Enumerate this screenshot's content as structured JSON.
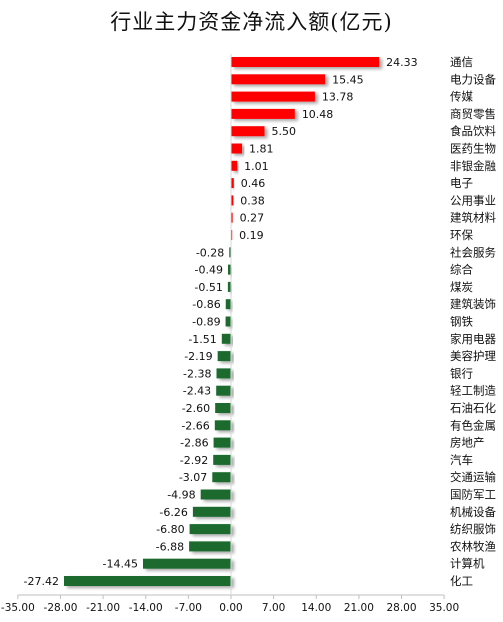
{
  "chart_data": {
    "type": "bar",
    "orientation": "horizontal",
    "title": "行业主力资金净流入额(亿元)",
    "xlabel": "",
    "ylabel": "",
    "xlim": [
      -35,
      35
    ],
    "xticks": [
      "-35.00",
      "-28.00",
      "-21.00",
      "-14.00",
      "-7.00",
      "0.00",
      "7.00",
      "14.00",
      "21.00",
      "28.00",
      "35.00"
    ],
    "categories": [
      "通信",
      "电力设备",
      "传媒",
      "商贸零售",
      "食品饮料",
      "医药生物",
      "非银金融",
      "电子",
      "公用事业",
      "建筑材料",
      "环保",
      "社会服务",
      "综合",
      "煤炭",
      "建筑装饰",
      "钢铁",
      "家用电器",
      "美容护理",
      "银行",
      "轻工制造",
      "石油石化",
      "有色金属",
      "房地产",
      "汽车",
      "交通运输",
      "国防军工",
      "机械设备",
      "纺织服饰",
      "农林牧渔",
      "计算机",
      "化工"
    ],
    "values": [
      24.33,
      15.45,
      13.78,
      10.48,
      5.5,
      1.81,
      1.01,
      0.46,
      0.38,
      0.27,
      0.19,
      -0.28,
      -0.49,
      -0.51,
      -0.86,
      -0.89,
      -1.51,
      -2.19,
      -2.38,
      -2.43,
      -2.6,
      -2.66,
      -2.86,
      -2.92,
      -3.07,
      -4.98,
      -6.26,
      -6.8,
      -6.88,
      -14.45,
      -27.42
    ],
    "value_labels": [
      "24.33",
      "15.45",
      "13.78",
      "10.48",
      "5.50",
      "1.81",
      "1.01",
      "0.46",
      "0.38",
      "0.27",
      "0.19",
      "-0.28",
      "-0.49",
      "-0.51",
      "-0.86",
      "-0.89",
      "-1.51",
      "-2.19",
      "-2.38",
      "-2.43",
      "-2.60",
      "-2.66",
      "-2.86",
      "-2.92",
      "-3.07",
      "-4.98",
      "-6.26",
      "-6.80",
      "-6.88",
      "-14.45",
      "-27.42"
    ],
    "colors": {
      "positive": "#ff0000",
      "negative": "#1a6b2e"
    },
    "grid": false,
    "legend": "none"
  }
}
